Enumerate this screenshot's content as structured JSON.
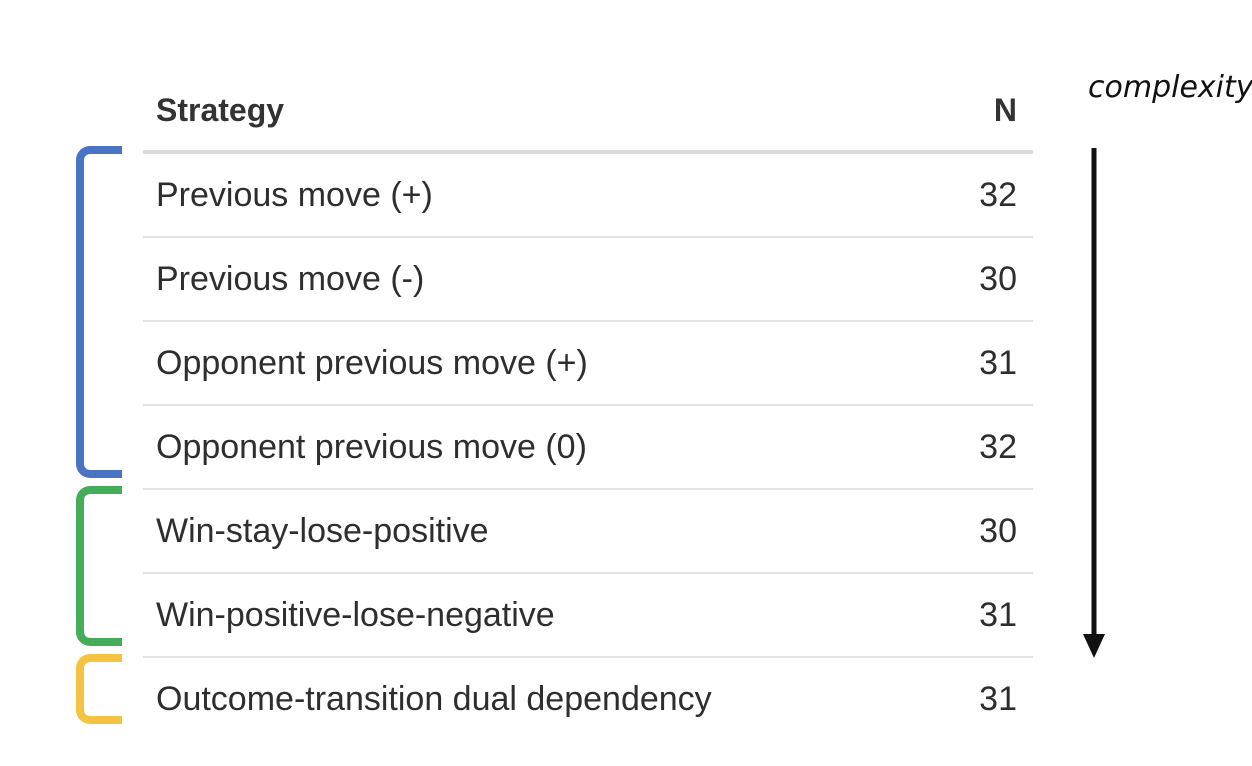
{
  "table": {
    "headers": {
      "strategy": "Strategy",
      "n": "N"
    },
    "rows": [
      {
        "strategy": "Previous move (+)",
        "n": "32"
      },
      {
        "strategy": "Previous move (-)",
        "n": "30"
      },
      {
        "strategy": "Opponent previous move (+)",
        "n": "31"
      },
      {
        "strategy": "Opponent previous move (0)",
        "n": "32"
      },
      {
        "strategy": "Win-stay-lose-positive",
        "n": "30"
      },
      {
        "strategy": "Win-positive-lose-negative",
        "n": "31"
      },
      {
        "strategy": "Outcome-transition dual dependency",
        "n": "31"
      }
    ]
  },
  "annotation": {
    "complexity_label": "complexity"
  },
  "brackets": [
    {
      "color": "#4a73c4",
      "rows": [
        1,
        4
      ]
    },
    {
      "color": "#45ad5a",
      "rows": [
        5,
        6
      ]
    },
    {
      "color": "#f5c242",
      "rows": [
        7,
        7
      ]
    }
  ]
}
